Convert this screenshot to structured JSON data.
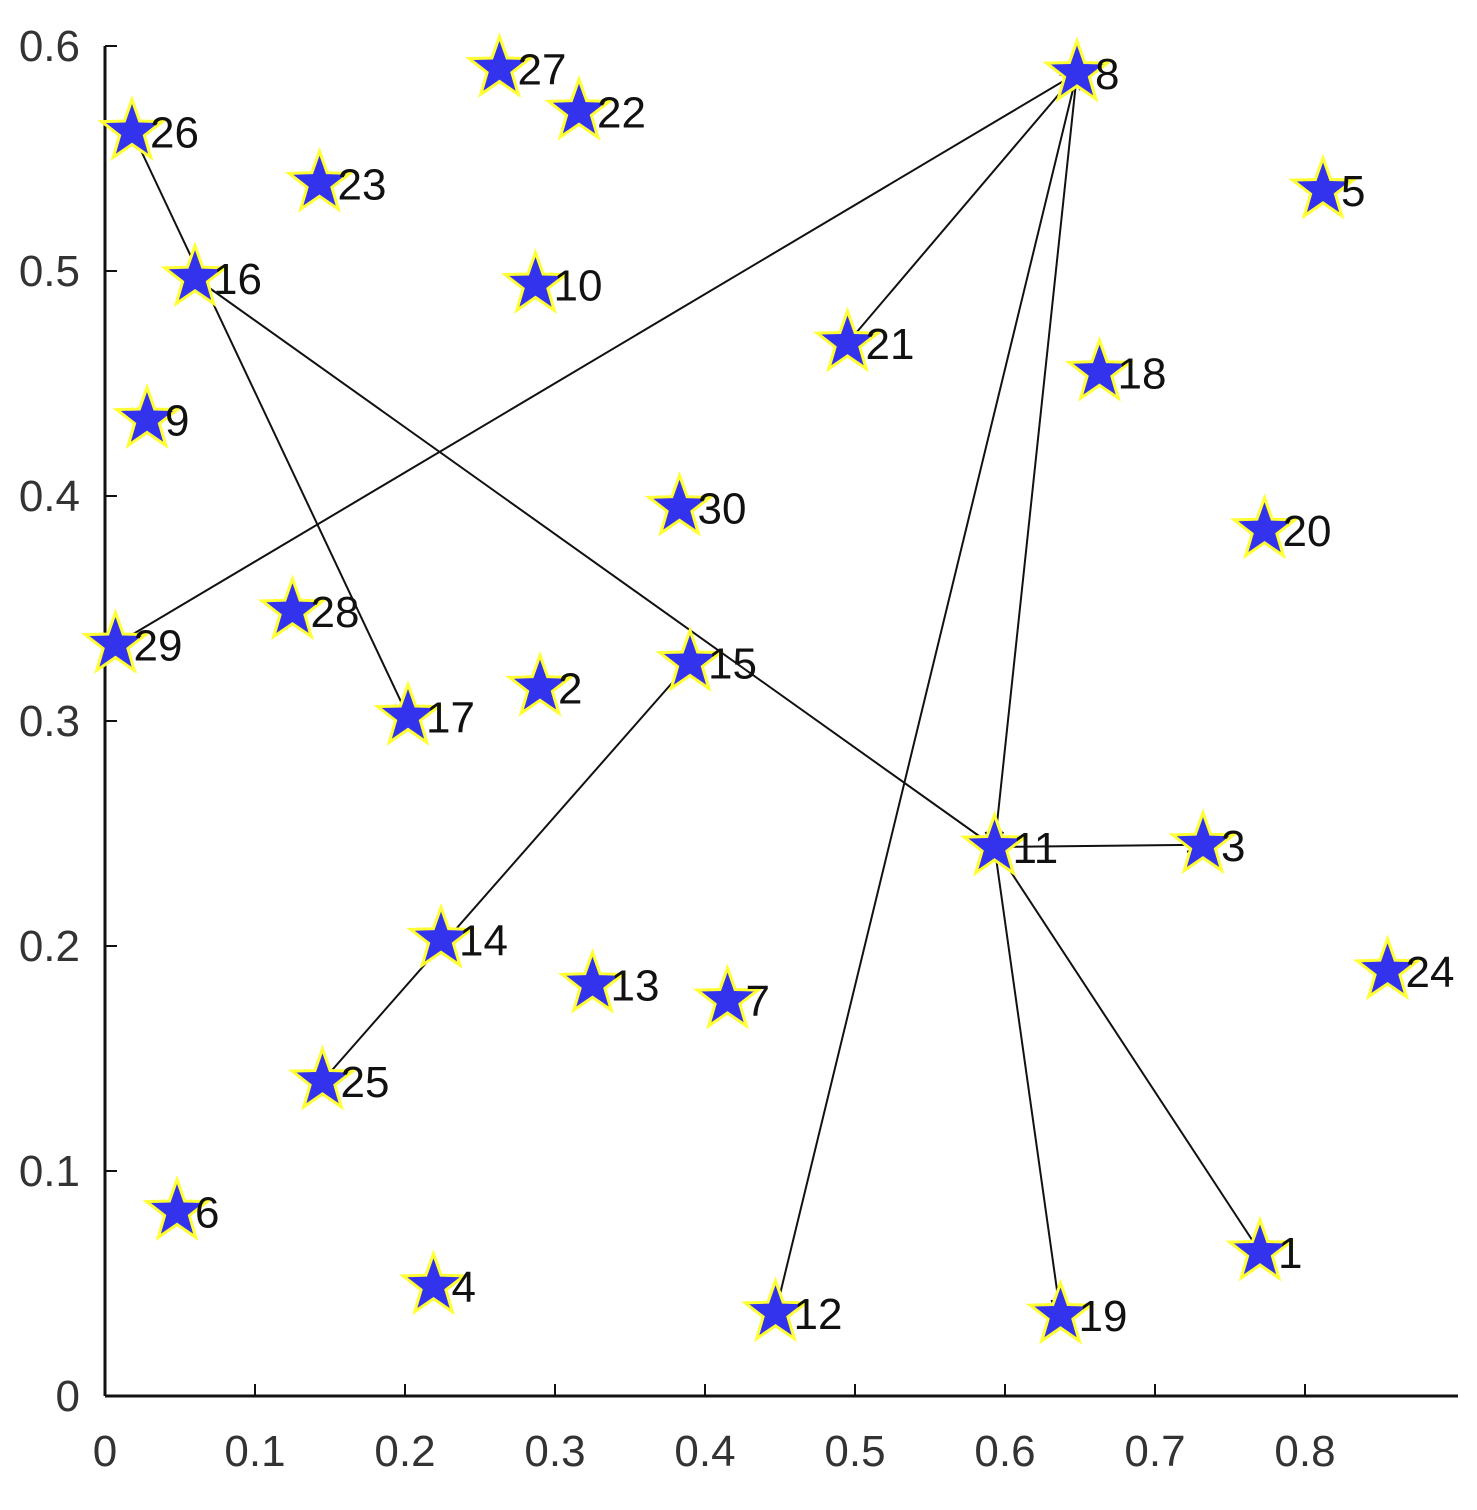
{
  "chart_data": {
    "type": "scatter",
    "xlim": [
      0,
      0.9
    ],
    "ylim": [
      0,
      0.6
    ],
    "xticks": [
      "0",
      "0.1",
      "0.2",
      "0.3",
      "0.4",
      "0.5",
      "0.6",
      "0.7",
      "0.8"
    ],
    "yticks": [
      "0",
      "0.1",
      "0.2",
      "0.3",
      "0.4",
      "0.5",
      "0.6"
    ],
    "grid": false,
    "marker": "star",
    "colors": {
      "marker_fill": "#3333ee",
      "marker_outline": "#ffff33",
      "edge": "#111111",
      "axis": "#111111"
    },
    "points": [
      {
        "id": "1",
        "x": 0.77,
        "y": 0.064
      },
      {
        "id": "2",
        "x": 0.29,
        "y": 0.315
      },
      {
        "id": "3",
        "x": 0.732,
        "y": 0.245
      },
      {
        "id": "4",
        "x": 0.219,
        "y": 0.049
      },
      {
        "id": "5",
        "x": 0.812,
        "y": 0.536
      },
      {
        "id": "6",
        "x": 0.048,
        "y": 0.082
      },
      {
        "id": "7",
        "x": 0.415,
        "y": 0.176
      },
      {
        "id": "8",
        "x": 0.648,
        "y": 0.588
      },
      {
        "id": "9",
        "x": 0.028,
        "y": 0.434
      },
      {
        "id": "10",
        "x": 0.287,
        "y": 0.494
      },
      {
        "id": "11",
        "x": 0.593,
        "y": 0.244
      },
      {
        "id": "12",
        "x": 0.447,
        "y": 0.037
      },
      {
        "id": "13",
        "x": 0.325,
        "y": 0.183
      },
      {
        "id": "14",
        "x": 0.224,
        "y": 0.203
      },
      {
        "id": "15",
        "x": 0.39,
        "y": 0.326
      },
      {
        "id": "16",
        "x": 0.06,
        "y": 0.497
      },
      {
        "id": "17",
        "x": 0.202,
        "y": 0.302
      },
      {
        "id": "18",
        "x": 0.663,
        "y": 0.455
      },
      {
        "id": "19",
        "x": 0.637,
        "y": 0.036
      },
      {
        "id": "20",
        "x": 0.773,
        "y": 0.385
      },
      {
        "id": "21",
        "x": 0.495,
        "y": 0.468
      },
      {
        "id": "22",
        "x": 0.316,
        "y": 0.571
      },
      {
        "id": "23",
        "x": 0.143,
        "y": 0.539
      },
      {
        "id": "24",
        "x": 0.855,
        "y": 0.189
      },
      {
        "id": "25",
        "x": 0.145,
        "y": 0.14
      },
      {
        "id": "26",
        "x": 0.018,
        "y": 0.562
      },
      {
        "id": "27",
        "x": 0.263,
        "y": 0.59
      },
      {
        "id": "28",
        "x": 0.125,
        "y": 0.349
      },
      {
        "id": "29",
        "x": 0.007,
        "y": 0.334
      },
      {
        "id": "30",
        "x": 0.383,
        "y": 0.395
      }
    ],
    "edges": [
      {
        "from": "26",
        "to": "17"
      },
      {
        "from": "16",
        "to": "11"
      },
      {
        "from": "29",
        "to": "8"
      },
      {
        "from": "8",
        "to": "21"
      },
      {
        "from": "12",
        "to": "8"
      },
      {
        "from": "8",
        "to": "11"
      },
      {
        "from": "11",
        "to": "19"
      },
      {
        "from": "11",
        "to": "1"
      },
      {
        "from": "11",
        "to": "3"
      },
      {
        "from": "15",
        "to": "25"
      }
    ]
  }
}
